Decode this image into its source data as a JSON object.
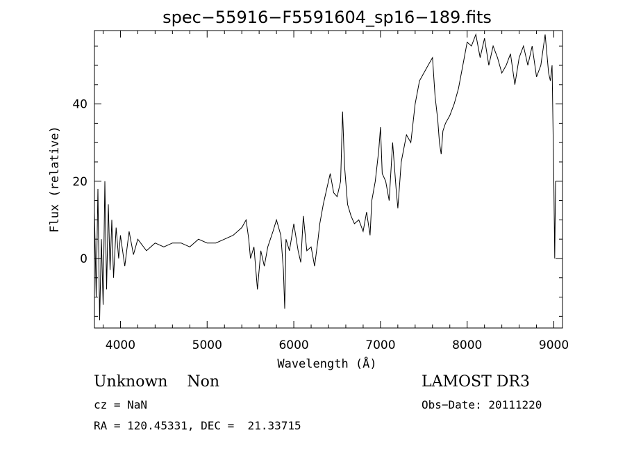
{
  "chart_data": {
    "type": "line",
    "title": "spec−55916−F5591604_sp16−189.fits",
    "xlabel": "Wavelength (Å)",
    "ylabel": "Flux (relative)",
    "xlim": [
      3700,
      9100
    ],
    "ylim": [
      -18,
      59
    ],
    "x_ticks": [
      4000,
      5000,
      6000,
      7000,
      8000,
      9000
    ],
    "y_ticks": [
      0,
      20,
      40
    ],
    "grid": false,
    "series": [
      {
        "x": [
          3700,
          3720,
          3740,
          3760,
          3780,
          3800,
          3820,
          3840,
          3860,
          3880,
          3900,
          3920,
          3950,
          3980,
          4000,
          4050,
          4100,
          4150,
          4200,
          4300,
          4400,
          4500,
          4600,
          4700,
          4800,
          4900,
          5000,
          5100,
          5200,
          5300,
          5400,
          5450,
          5480,
          5500,
          5540,
          5580,
          5620,
          5660,
          5700,
          5760,
          5800,
          5850,
          5880,
          5895,
          5910,
          5950,
          6000,
          6050,
          6080,
          6110,
          6150,
          6200,
          6240,
          6280,
          6300,
          6340,
          6380,
          6420,
          6460,
          6500,
          6540,
          6563,
          6585,
          6620,
          6660,
          6700,
          6750,
          6800,
          6840,
          6880,
          6900,
          6940,
          6980,
          7000,
          7020,
          7060,
          7100,
          7140,
          7180,
          7200,
          7240,
          7300,
          7350,
          7400,
          7450,
          7500,
          7550,
          7600,
          7630,
          7660,
          7680,
          7700,
          7720,
          7750,
          7800,
          7850,
          7900,
          7950,
          8000,
          8050,
          8100,
          8150,
          8200,
          8250,
          8300,
          8350,
          8400,
          8450,
          8500,
          8550,
          8600,
          8650,
          8700,
          8750,
          8800,
          8850,
          8900,
          8940,
          8960,
          8980,
          9000,
          9010,
          9020
        ],
        "y": [
          12,
          -10,
          18,
          -16,
          5,
          -12,
          20,
          -8,
          14,
          -3,
          10,
          -5,
          8,
          0,
          6,
          -2,
          7,
          1,
          5,
          2,
          4,
          3,
          4,
          4,
          3,
          5,
          4,
          4,
          5,
          6,
          8,
          10,
          5,
          0,
          3,
          -8,
          2,
          -2,
          3,
          7,
          10,
          6,
          -3,
          -13,
          5,
          2,
          9,
          2,
          -1,
          11,
          2,
          3,
          -2,
          5,
          9,
          14,
          18,
          22,
          17,
          16,
          20,
          38,
          24,
          14,
          11,
          9,
          10,
          7,
          12,
          6,
          15,
          20,
          28,
          34,
          22,
          20,
          15,
          30,
          18,
          13,
          25,
          32,
          30,
          40,
          46,
          48,
          50,
          52,
          42,
          36,
          30,
          27,
          33,
          35,
          37,
          40,
          44,
          50,
          56,
          55,
          58,
          52,
          57,
          50,
          55,
          52,
          48,
          50,
          53,
          45,
          52,
          55,
          50,
          55,
          47,
          50,
          58,
          48,
          46,
          50,
          20,
          0,
          20
        ]
      }
    ]
  },
  "info": {
    "class_subclass": "Unknown    Non",
    "survey": "LAMOST DR3",
    "cz": "cz = NaN",
    "obs_date": "Obs−Date: 20111220",
    "coords": "RA = 120.45331, DEC =  21.33715"
  }
}
